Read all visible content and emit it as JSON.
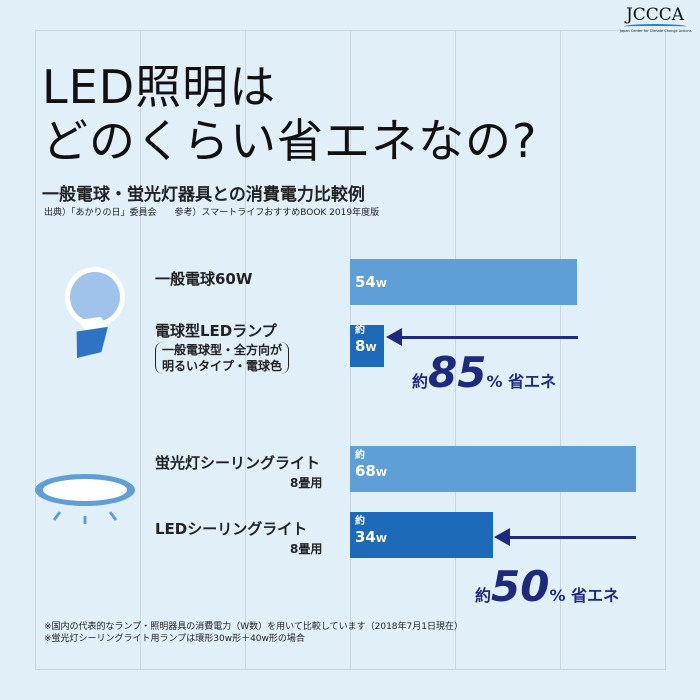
{
  "logo": {
    "text": "JCCCA",
    "tagline": "Japan Center for Climate Change Actions"
  },
  "title": [
    "LED照明は",
    "どのくらい省エネなの?"
  ],
  "subtitle": "一般電球・蛍光灯器具との消費電力比較例",
  "source": "出典）「あかりの日」委員会　　参考）スマートライフおすすめBOOK 2019年度版",
  "colors": {
    "bar_light": "#5f9fd8",
    "bar_dark": "#1d6ab8",
    "accent": "#1e2a7d"
  },
  "items": [
    {
      "label": "一般電球60W",
      "prefix": "",
      "value": "54",
      "unit": "W",
      "watts": 54
    },
    {
      "label": "電球型LEDランプ",
      "detail": [
        "一般電球型・全方向が",
        "明るいタイプ・電球色"
      ],
      "prefix": "約",
      "value": "8",
      "unit": "W",
      "watts": 8
    },
    {
      "label": "蛍光灯シーリングライト",
      "detail": [
        "8畳用"
      ],
      "prefix": "約",
      "value": "68",
      "unit": "W",
      "watts": 68
    },
    {
      "label": "LEDシーリングライト",
      "detail": [
        "8畳用"
      ],
      "prefix": "約",
      "value": "34",
      "unit": "W",
      "watts": 34
    }
  ],
  "savings": [
    {
      "prefix": "約",
      "value": "85",
      "unit": "%",
      "suffix": "省エネ"
    },
    {
      "prefix": "約",
      "value": "50",
      "unit": "%",
      "suffix": "省エネ"
    }
  ],
  "notes": [
    "※国内の代表的なランプ・照明器具の消費電力（W数）を用いて比較しています（2018年7月1日現在）",
    "※蛍光灯シーリングライト用ランプは環形30w形＋40w形の場合"
  ]
}
